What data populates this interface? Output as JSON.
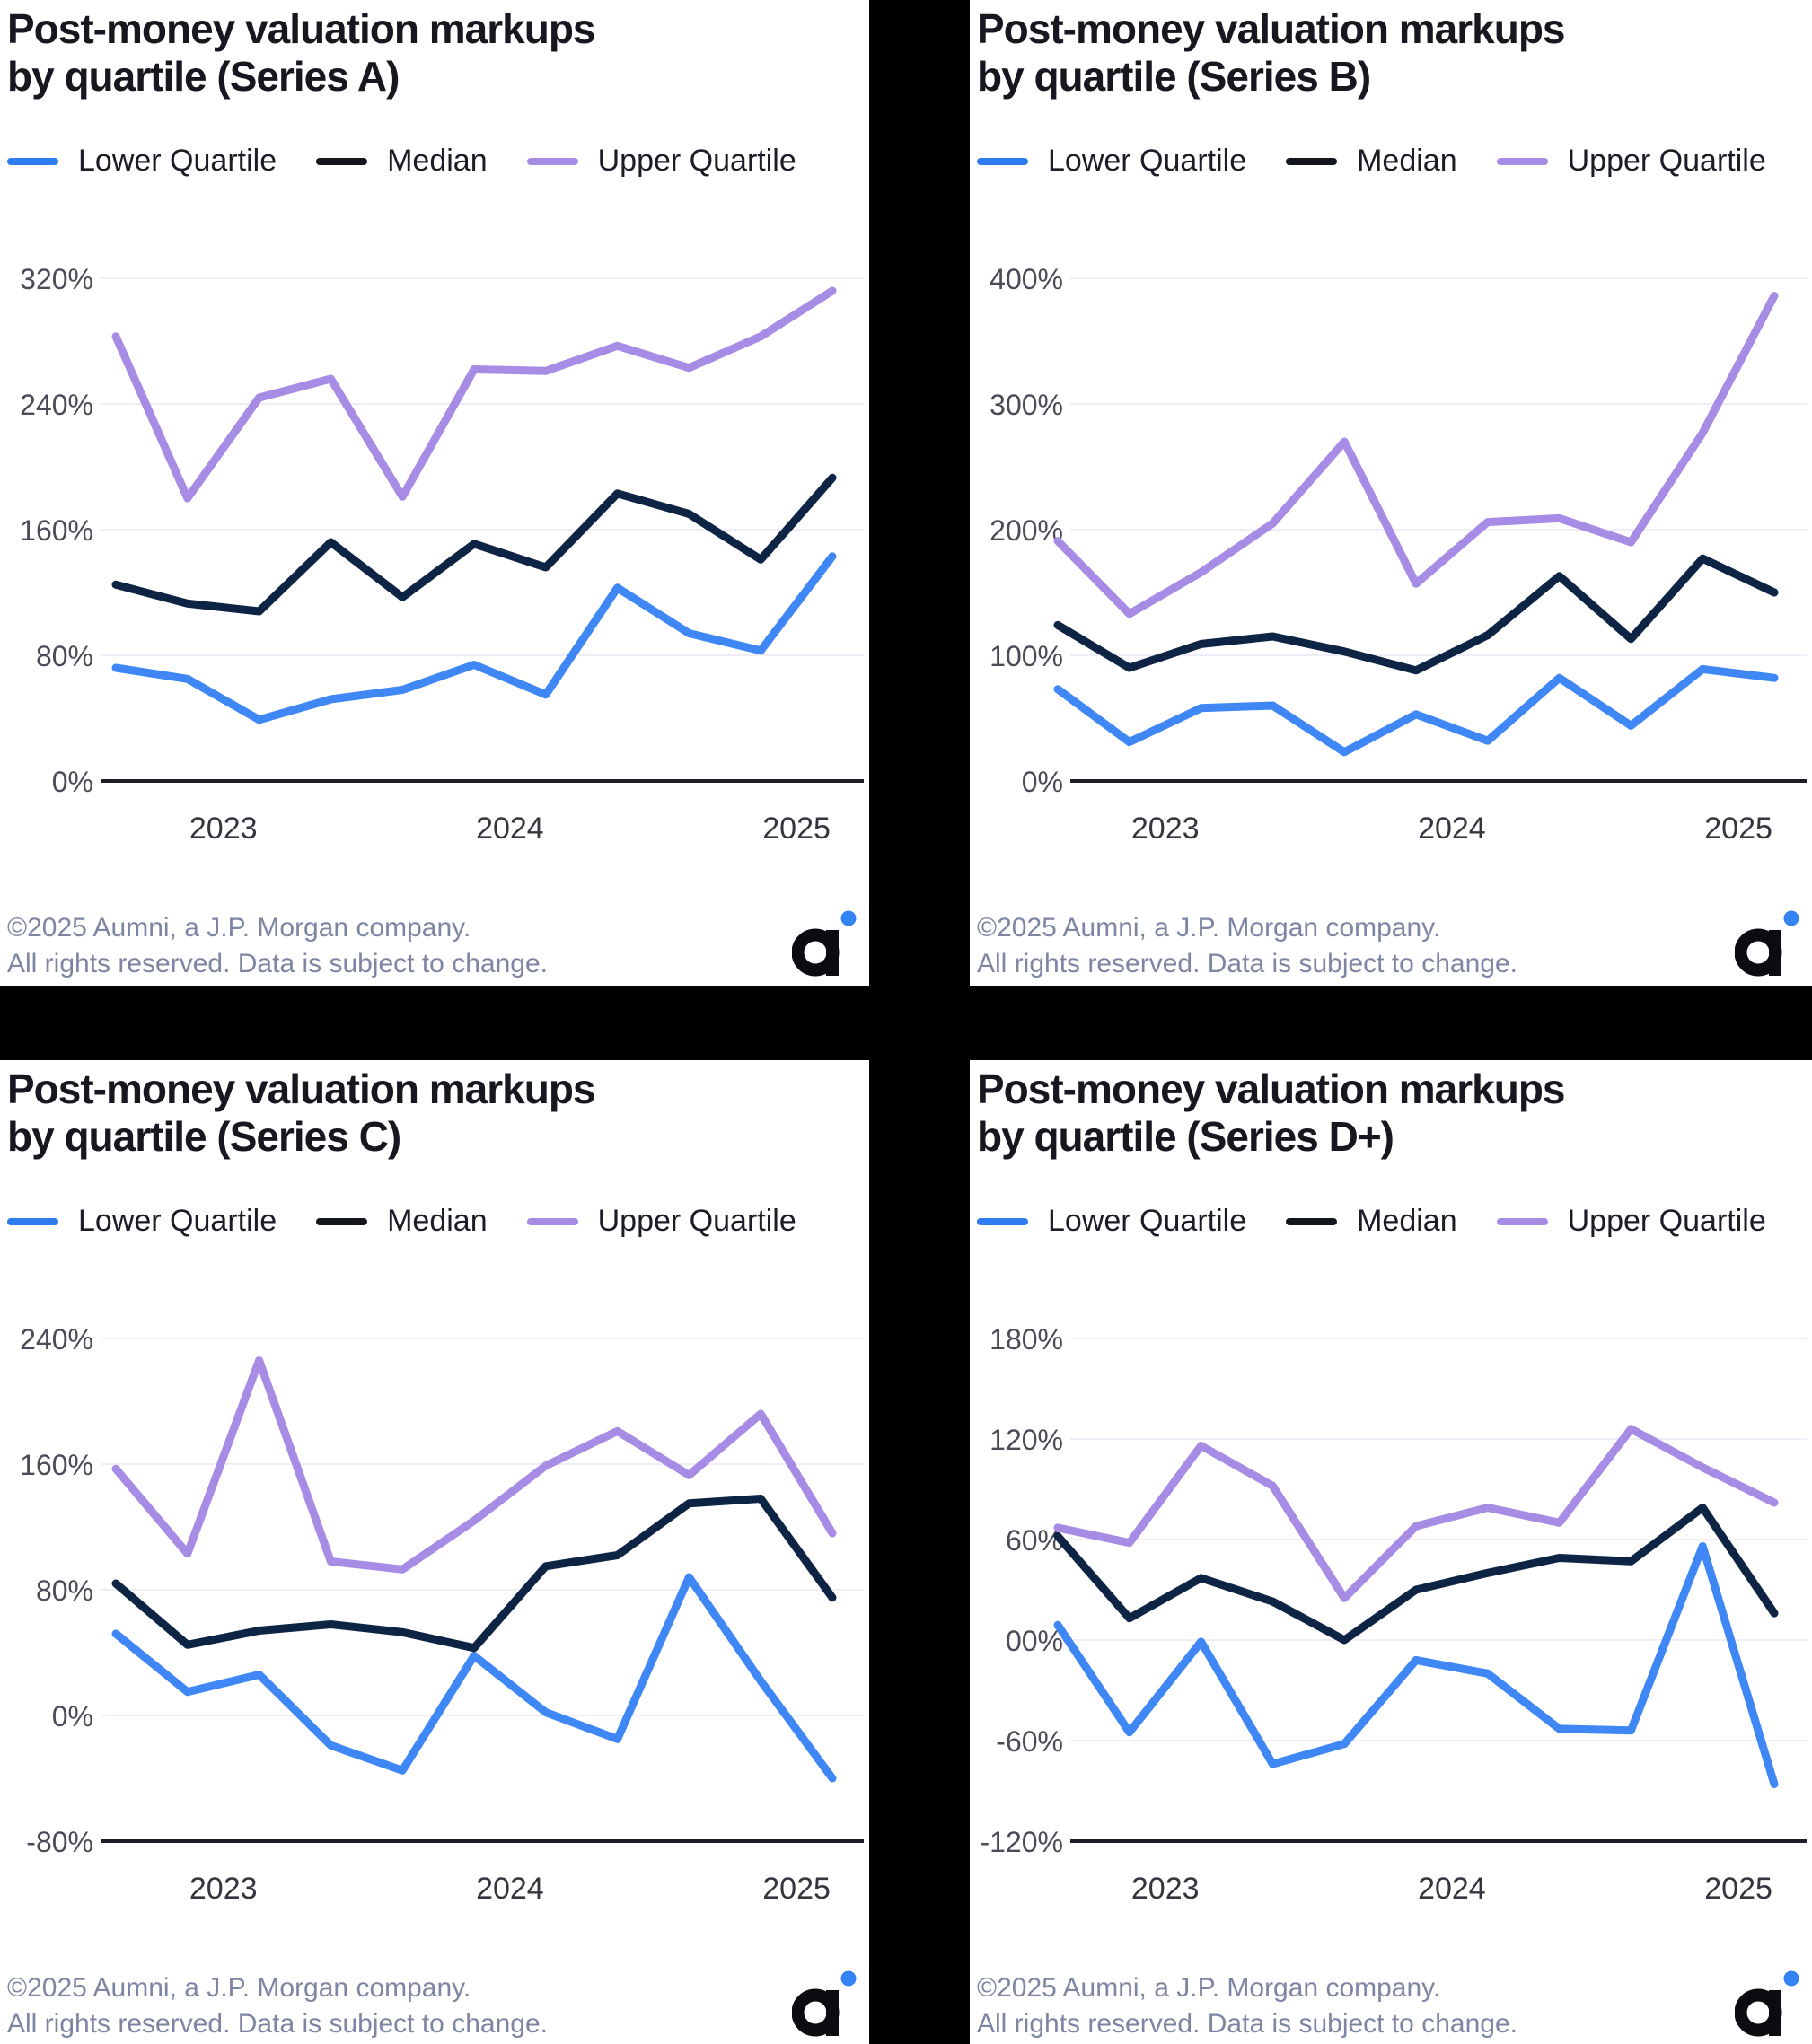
{
  "page": {
    "background": "#ffffff",
    "divider_color": "#000000"
  },
  "legend": {
    "items": [
      {
        "label": "Lower Quartile",
        "color": "#2E7CF0"
      },
      {
        "label": "Median",
        "color": "#14161D"
      },
      {
        "label": "Upper Quartile",
        "color": "#A78CE6"
      }
    ]
  },
  "footer": {
    "line1": "©2025 Aumni, a J.P. Morgan company.",
    "line2": "All rights reserved. Data is subject to change."
  },
  "logo": {
    "name": "aumni-logo",
    "glyph_color": "#0B0B10",
    "dot_color": "#3584F3"
  },
  "chart_data": [
    {
      "id": "series-a",
      "type": "line",
      "title_line1": "Post-money valuation markups",
      "title_line2": "by quartile (Series A)",
      "grid": true,
      "legend_position": "top",
      "x_year_labels": [
        "2023",
        "2024",
        "2025"
      ],
      "n_points": 11,
      "ylim": [
        0,
        320
      ],
      "y_ticks": [
        {
          "label": "320%",
          "value": 320
        },
        {
          "label": "240%",
          "value": 240
        },
        {
          "label": "160%",
          "value": 160
        },
        {
          "label": "80%",
          "value": 80
        },
        {
          "label": "0%",
          "value": 0
        }
      ],
      "series": [
        {
          "name": "Lower Quartile",
          "color": "#3F87F5",
          "values": [
            72,
            65,
            39,
            52,
            58,
            74,
            55,
            123,
            94,
            83,
            143
          ]
        },
        {
          "name": "Median",
          "color": "#0E2444",
          "values": [
            125,
            113,
            108,
            152,
            117,
            151,
            136,
            183,
            170,
            141,
            193
          ]
        },
        {
          "name": "Upper Quartile",
          "color": "#A78CE6",
          "values": [
            283,
            180,
            244,
            256,
            181,
            262,
            261,
            277,
            263,
            283,
            312
          ]
        }
      ]
    },
    {
      "id": "series-b",
      "type": "line",
      "title_line1": "Post-money valuation markups",
      "title_line2": "by quartile (Series B)",
      "grid": true,
      "legend_position": "top",
      "x_year_labels": [
        "2023",
        "2024",
        "2025"
      ],
      "n_points": 11,
      "ylim": [
        0,
        400
      ],
      "y_ticks": [
        {
          "label": "400%",
          "value": 400
        },
        {
          "label": "300%",
          "value": 300
        },
        {
          "label": "200%",
          "value": 200
        },
        {
          "label": "100%",
          "value": 100
        },
        {
          "label": "0%",
          "value": 0
        }
      ],
      "series": [
        {
          "name": "Lower Quartile",
          "color": "#3F87F5",
          "values": [
            73,
            31,
            58,
            60,
            23,
            53,
            32,
            82,
            44,
            89,
            82
          ]
        },
        {
          "name": "Median",
          "color": "#0E2444",
          "values": [
            124,
            90,
            109,
            115,
            103,
            88,
            116,
            163,
            113,
            177,
            150
          ]
        },
        {
          "name": "Upper Quartile",
          "color": "#A78CE6",
          "values": [
            191,
            133,
            166,
            205,
            270,
            157,
            206,
            209,
            190,
            277,
            386
          ]
        }
      ]
    },
    {
      "id": "series-c",
      "type": "line",
      "title_line1": "Post-money valuation markups",
      "title_line2": "by quartile (Series C)",
      "grid": true,
      "legend_position": "top",
      "x_year_labels": [
        "2023",
        "2024",
        "2025"
      ],
      "n_points": 11,
      "ylim": [
        -80,
        240
      ],
      "y_ticks": [
        {
          "label": "240%",
          "value": 240
        },
        {
          "label": "160%",
          "value": 160
        },
        {
          "label": "80%",
          "value": 80
        },
        {
          "label": "0%",
          "value": 0
        },
        {
          "label": "-80%",
          "value": -80
        }
      ],
      "series": [
        {
          "name": "Lower Quartile",
          "color": "#3F87F5",
          "values": [
            52,
            15,
            26,
            -19,
            -35,
            38,
            2,
            -15,
            88,
            22,
            -40
          ]
        },
        {
          "name": "Median",
          "color": "#0E2444",
          "values": [
            84,
            45,
            54,
            58,
            53,
            43,
            95,
            102,
            135,
            138,
            75
          ]
        },
        {
          "name": "Upper Quartile",
          "color": "#A78CE6",
          "values": [
            157,
            103,
            226,
            98,
            93,
            124,
            159,
            181,
            153,
            192,
            116
          ]
        }
      ]
    },
    {
      "id": "series-d-plus",
      "type": "line",
      "title_line1": "Post-money valuation markups",
      "title_line2": "by quartile (Series D+)",
      "grid": true,
      "legend_position": "top",
      "x_year_labels": [
        "2023",
        "2024",
        "2025"
      ],
      "n_points": 11,
      "ylim": [
        -120,
        180
      ],
      "y_ticks": [
        {
          "label": "180%",
          "value": 180
        },
        {
          "label": "120%",
          "value": 120
        },
        {
          "label": "60%",
          "value": 60
        },
        {
          "label": "00%",
          "value": 0
        },
        {
          "label": "-60%",
          "value": -60
        },
        {
          "label": "-120%",
          "value": -120
        }
      ],
      "series": [
        {
          "name": "Lower Quartile",
          "color": "#3F87F5",
          "values": [
            9,
            -55,
            -1,
            -74,
            -62,
            -12,
            -20,
            -53,
            -54,
            56,
            -86
          ]
        },
        {
          "name": "Median",
          "color": "#0E2444",
          "values": [
            62,
            13,
            37,
            23,
            0,
            30,
            40,
            49,
            47,
            79,
            16
          ]
        },
        {
          "name": "Upper Quartile",
          "color": "#A78CE6",
          "values": [
            67,
            58,
            116,
            92,
            25,
            68,
            79,
            70,
            126,
            103,
            82
          ]
        }
      ]
    }
  ]
}
